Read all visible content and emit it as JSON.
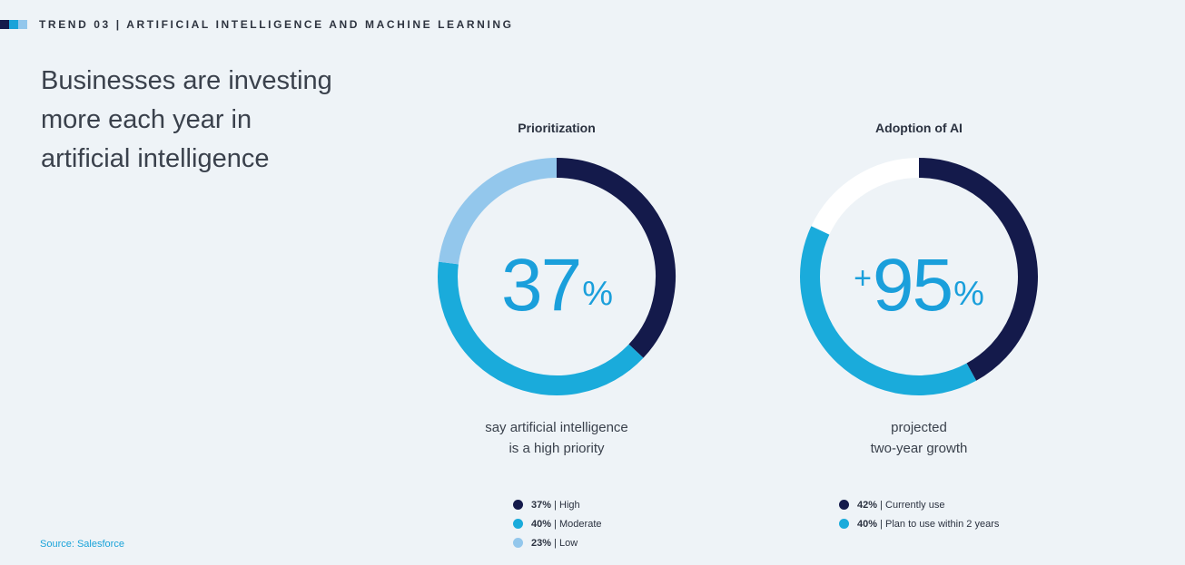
{
  "header": {
    "text": "TREND 03 | ARTIFICIAL INTELLIGENCE AND MACHINE LEARNING",
    "bar_colors": [
      "#141a4b",
      "#1aa3d9",
      "#93c7ec"
    ]
  },
  "headline": {
    "line1": "Businesses are investing",
    "line2": "more each year in",
    "line3": "artificial intelligence"
  },
  "source": "Source: Salesforce",
  "colors": {
    "navy": "#141a4b",
    "blue": "#1aabdb",
    "light_blue": "#93c7ec",
    "white": "#ffffff",
    "accent_text": "#1a9fdb"
  },
  "chart_data": [
    {
      "type": "pie",
      "title": "Prioritization",
      "center_value": "37",
      "center_prefix": "",
      "center_suffix": "%",
      "caption_line1": "say artificial intelligence",
      "caption_line2": "is a high priority",
      "segments": [
        {
          "value": 37,
          "color": "#141a4b",
          "pct_label": "37%",
          "label": "High"
        },
        {
          "value": 40,
          "color": "#1aabdb",
          "pct_label": "40%",
          "label": "Moderate"
        },
        {
          "value": 23,
          "color": "#93c7ec",
          "pct_label": "23%",
          "label": "Low"
        }
      ]
    },
    {
      "type": "pie",
      "title": "Adoption of AI",
      "center_value": "95",
      "center_prefix": "+",
      "center_suffix": "%",
      "caption_line1": "projected",
      "caption_line2": "two-year growth",
      "segments": [
        {
          "value": 42,
          "color": "#141a4b",
          "pct_label": "42%",
          "label": "Currently use"
        },
        {
          "value": 40,
          "color": "#1aabdb",
          "pct_label": "40%",
          "label": "Plan to use within 2 years"
        },
        {
          "value": 18,
          "color": "#ffffff"
        }
      ]
    }
  ]
}
